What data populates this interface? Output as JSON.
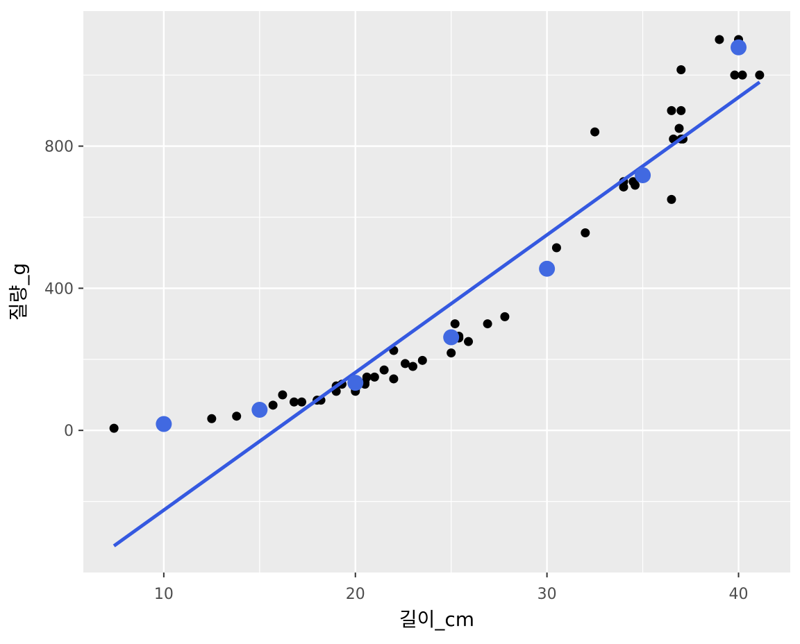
{
  "chart_data": {
    "type": "scatter",
    "xlabel": "길이_cm",
    "ylabel": "질량_g",
    "xlim": [
      5.8,
      42.7
    ],
    "ylim": [
      -400,
      1180
    ],
    "x_ticks": [
      10,
      20,
      30,
      40
    ],
    "x_tick_labels": [
      "10",
      "20",
      "30",
      "40"
    ],
    "x_minor_ticks": [
      15,
      25,
      35
    ],
    "y_ticks": [
      0,
      400,
      800
    ],
    "y_tick_labels": [
      "0",
      "400",
      "800"
    ],
    "y_minor_ticks": [
      -200,
      200,
      600,
      1000
    ],
    "grid": true,
    "panel_background": "#ebebeb",
    "grid_color": "#ffffff",
    "series": [
      {
        "kind": "points",
        "color": "#000000",
        "x": [
          7.4,
          12.5,
          13.8,
          15.7,
          16.2,
          16.8,
          17.2,
          18.0,
          18.2,
          19.0,
          19.0,
          19.3,
          20.0,
          20.0,
          20.5,
          20.5,
          20.6,
          21.0,
          21.5,
          22.0,
          22.0,
          22.6,
          23.0,
          23.5,
          25.0,
          25.2,
          25.4,
          25.4,
          25.9,
          26.9,
          27.8,
          30.5,
          32.0,
          32.5,
          34.0,
          34.0,
          34.5,
          34.6,
          36.5,
          36.5,
          36.6,
          36.9,
          37.0,
          37.0,
          37.0,
          37.1,
          39.0,
          39.8,
          40.0,
          40.2,
          41.1
        ],
        "y": [
          6,
          33,
          40,
          71,
          100,
          80,
          80,
          85,
          85,
          110,
          125,
          130,
          110,
          115,
          130,
          135,
          150,
          150,
          170,
          145,
          225,
          188,
          180,
          197,
          218,
          300,
          260,
          265,
          250,
          300,
          320,
          514,
          556,
          840,
          700,
          685,
          700,
          690,
          900,
          650,
          820,
          850,
          900,
          1015,
          820,
          820,
          1100,
          1000,
          1100,
          1000,
          1000
        ]
      },
      {
        "kind": "highlight-points",
        "color": "#4169e1",
        "x": [
          10,
          15,
          20,
          25,
          30,
          35,
          40
        ],
        "y": [
          18,
          58,
          134,
          262,
          455,
          718,
          1078
        ]
      },
      {
        "kind": "regression-line",
        "color": "#3559e0",
        "x": [
          7.4,
          41.1
        ],
        "y": [
          -325,
          980
        ]
      }
    ]
  }
}
